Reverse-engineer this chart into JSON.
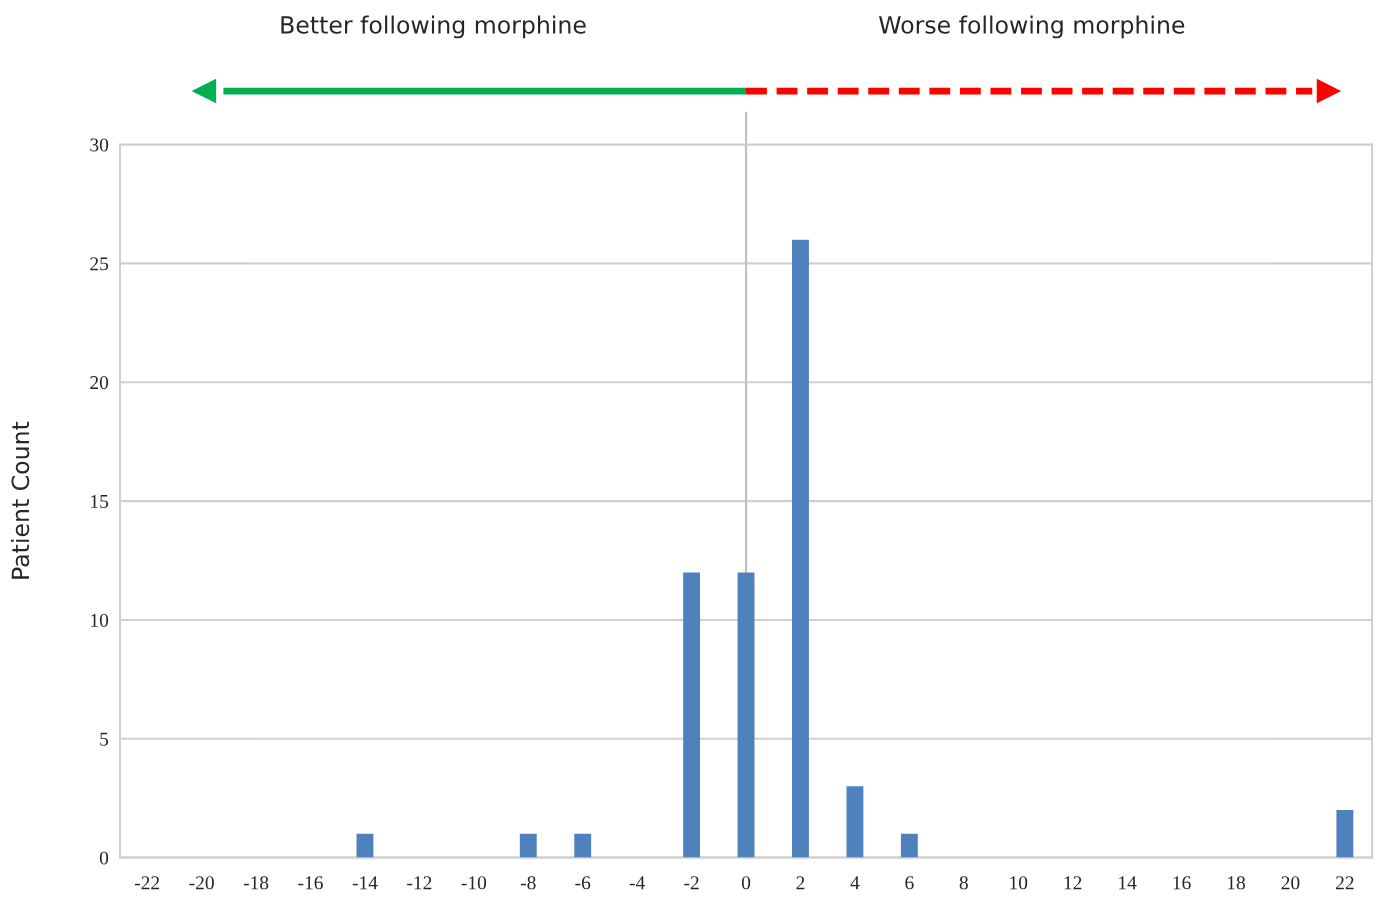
{
  "chart_data": {
    "type": "bar",
    "ylabel": "Patient Count",
    "x": [
      -22,
      -20,
      -18,
      -16,
      -14,
      -12,
      -10,
      -8,
      -6,
      -4,
      -2,
      0,
      2,
      4,
      6,
      8,
      10,
      12,
      14,
      16,
      18,
      20,
      22
    ],
    "series": [
      {
        "color": "#4f81bd",
        "values": [
          0,
          0,
          0,
          0,
          1,
          0,
          0,
          1,
          1,
          0,
          12,
          12,
          26,
          3,
          1,
          0,
          0,
          0,
          0,
          0,
          0,
          0,
          2
        ]
      }
    ],
    "xlim": [
      -23,
      23
    ],
    "xticks": [
      -22,
      -20,
      -18,
      -16,
      -14,
      -12,
      -10,
      -8,
      -6,
      -4,
      -2,
      0,
      2,
      4,
      6,
      8,
      10,
      12,
      14,
      16,
      18,
      20,
      22
    ],
    "ylim": [
      0,
      30
    ],
    "yticks": [
      0,
      5,
      10,
      15,
      20,
      25,
      30
    ],
    "grid": "y",
    "ref_lines": [
      {
        "axis": "x",
        "value": 0,
        "color": "#bfbfbf"
      }
    ],
    "annotations": [
      "Better following morphine",
      "Worse following morphine"
    ]
  }
}
